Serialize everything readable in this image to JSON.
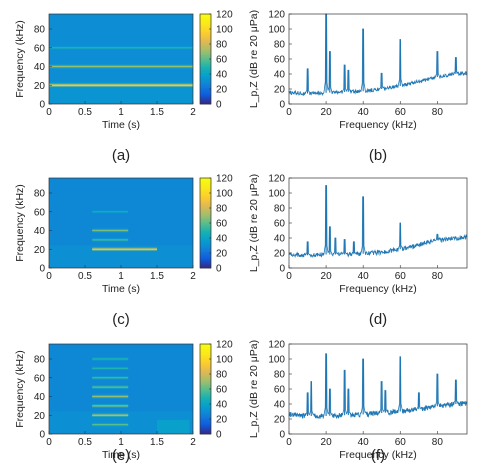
{
  "figure": {
    "captions": [
      "(a)",
      "(b)",
      "(c)",
      "(d)",
      "(e)",
      "(f)"
    ],
    "colorbar_ticks": [
      "0",
      "20",
      "40",
      "60",
      "80",
      "100",
      "120"
    ]
  },
  "chart_data": [
    {
      "type": "heatmap",
      "panel": "(a)",
      "xlabel": "Time (s)",
      "ylabel": "Frequency (kHz)",
      "xlim": [
        0,
        2
      ],
      "ylim": [
        0,
        96
      ],
      "xticks": [
        "0",
        "0.5",
        "1",
        "1.5",
        "2"
      ],
      "yticks": [
        "0",
        "20",
        "40",
        "60",
        "80"
      ],
      "colorbar": {
        "range": [
          0,
          120
        ],
        "ticks": [
          0,
          20,
          40,
          60,
          80,
          100,
          120
        ],
        "colormap": "parula"
      },
      "background_level": 30,
      "bands": [
        {
          "freq_khz": 20,
          "t_start": 0,
          "t_end": 2,
          "level": 95
        },
        {
          "freq_khz": 40,
          "t_start": 0,
          "t_end": 2,
          "level": 70
        },
        {
          "freq_khz": 60,
          "t_start": 0,
          "t_end": 2,
          "level": 50
        }
      ]
    },
    {
      "type": "line",
      "panel": "(b)",
      "xlabel": "Frequency (kHz)",
      "ylabel": "L_p,Z (dB re 20 μPa)",
      "xlim": [
        0,
        96
      ],
      "ylim": [
        0,
        120
      ],
      "xticks": [
        "0",
        "20",
        "40",
        "60",
        "80"
      ],
      "yticks": [
        "0",
        "20",
        "40",
        "60",
        "80",
        "100",
        "120"
      ],
      "baseline": [
        [
          0,
          15
        ],
        [
          10,
          14
        ],
        [
          20,
          15
        ],
        [
          30,
          16
        ],
        [
          40,
          17
        ],
        [
          50,
          20
        ],
        [
          60,
          24
        ],
        [
          70,
          30
        ],
        [
          80,
          36
        ],
        [
          90,
          40
        ],
        [
          96,
          41
        ]
      ],
      "peaks": [
        [
          10,
          47
        ],
        [
          20,
          120
        ],
        [
          22,
          70
        ],
        [
          30,
          52
        ],
        [
          32,
          45
        ],
        [
          40,
          100
        ],
        [
          50,
          41
        ],
        [
          60,
          86
        ],
        [
          80,
          70
        ],
        [
          90,
          62
        ]
      ],
      "noise_amplitude": 5
    },
    {
      "type": "heatmap",
      "panel": "(c)",
      "xlabel": "Time (s)",
      "ylabel": "Frequency (kHz)",
      "xlim": [
        0,
        2
      ],
      "ylim": [
        0,
        96
      ],
      "xticks": [
        "0",
        "0.5",
        "1",
        "1.5",
        "2"
      ],
      "yticks": [
        "0",
        "20",
        "40",
        "60",
        "80"
      ],
      "colorbar": {
        "range": [
          0,
          120
        ],
        "ticks": [
          0,
          20,
          40,
          60,
          80,
          100,
          120
        ],
        "colormap": "parula"
      },
      "background_level": 28,
      "bands": [
        {
          "freq_khz": 20,
          "t_start": 0.6,
          "t_end": 1.5,
          "level": 90
        },
        {
          "freq_khz": 30,
          "t_start": 0.6,
          "t_end": 1.1,
          "level": 55
        },
        {
          "freq_khz": 40,
          "t_start": 0.6,
          "t_end": 1.1,
          "level": 65
        },
        {
          "freq_khz": 60,
          "t_start": 0.6,
          "t_end": 1.1,
          "level": 45
        }
      ]
    },
    {
      "type": "line",
      "panel": "(d)",
      "xlabel": "Frequency (kHz)",
      "ylabel": "L_p,Z (dB re 20 μPa)",
      "xlim": [
        0,
        96
      ],
      "ylim": [
        0,
        120
      ],
      "xticks": [
        "0",
        "20",
        "40",
        "60",
        "80"
      ],
      "yticks": [
        "0",
        "20",
        "40",
        "60",
        "80",
        "100",
        "120"
      ],
      "baseline": [
        [
          0,
          18
        ],
        [
          10,
          17
        ],
        [
          20,
          18
        ],
        [
          30,
          18
        ],
        [
          40,
          19
        ],
        [
          50,
          21
        ],
        [
          60,
          25
        ],
        [
          70,
          31
        ],
        [
          80,
          37
        ],
        [
          90,
          40
        ],
        [
          96,
          41
        ]
      ],
      "peaks": [
        [
          10,
          35
        ],
        [
          20,
          110
        ],
        [
          22,
          55
        ],
        [
          25,
          40
        ],
        [
          30,
          38
        ],
        [
          35,
          35
        ],
        [
          40,
          95
        ],
        [
          60,
          60
        ],
        [
          80,
          45
        ]
      ],
      "noise_amplitude": 6
    },
    {
      "type": "heatmap",
      "panel": "(e)",
      "xlabel": "Time (s)",
      "ylabel": "Frequency (kHz)",
      "xlim": [
        0,
        2
      ],
      "ylim": [
        0,
        96
      ],
      "xticks": [
        "0",
        "0.5",
        "1",
        "1.5",
        "2"
      ],
      "yticks": [
        "0",
        "20",
        "40",
        "60",
        "80"
      ],
      "colorbar": {
        "range": [
          0,
          120
        ],
        "ticks": [
          0,
          20,
          40,
          60,
          80,
          100,
          120
        ],
        "colormap": "parula"
      },
      "background_level": 28,
      "bands": [
        {
          "freq_khz": 10,
          "t_start": 0.6,
          "t_end": 1.1,
          "level": 60
        },
        {
          "freq_khz": 20,
          "t_start": 0.6,
          "t_end": 1.1,
          "level": 75
        },
        {
          "freq_khz": 30,
          "t_start": 0.6,
          "t_end": 1.1,
          "level": 65
        },
        {
          "freq_khz": 40,
          "t_start": 0.6,
          "t_end": 1.1,
          "level": 70
        },
        {
          "freq_khz": 50,
          "t_start": 0.6,
          "t_end": 1.1,
          "level": 60
        },
        {
          "freq_khz": 60,
          "t_start": 0.6,
          "t_end": 1.1,
          "level": 55
        },
        {
          "freq_khz": 70,
          "t_start": 0.6,
          "t_end": 1.1,
          "level": 50
        },
        {
          "freq_khz": 80,
          "t_start": 0.6,
          "t_end": 1.1,
          "level": 50
        }
      ],
      "patches": [
        {
          "t_start": 1.5,
          "t_end": 1.95,
          "f_start": 0,
          "f_end": 15,
          "level": 38
        }
      ]
    },
    {
      "type": "line",
      "panel": "(f)",
      "xlabel": "Frequency (kHz)",
      "ylabel": "L_p,Z (dB re 20 μPa)",
      "xlim": [
        0,
        96
      ],
      "ylim": [
        0,
        120
      ],
      "xticks": [
        "0",
        "20",
        "40",
        "60",
        "80"
      ],
      "yticks": [
        "0",
        "20",
        "40",
        "60",
        "80",
        "100",
        "120"
      ],
      "baseline": [
        [
          0,
          26
        ],
        [
          10,
          24
        ],
        [
          20,
          24
        ],
        [
          30,
          25
        ],
        [
          40,
          26
        ],
        [
          50,
          28
        ],
        [
          60,
          30
        ],
        [
          70,
          33
        ],
        [
          80,
          37
        ],
        [
          90,
          40
        ],
        [
          96,
          41
        ]
      ],
      "peaks": [
        [
          10,
          55
        ],
        [
          12,
          70
        ],
        [
          20,
          107
        ],
        [
          22,
          60
        ],
        [
          30,
          85
        ],
        [
          32,
          60
        ],
        [
          40,
          100
        ],
        [
          50,
          70
        ],
        [
          52,
          58
        ],
        [
          60,
          103
        ],
        [
          70,
          55
        ],
        [
          80,
          80
        ],
        [
          90,
          72
        ]
      ],
      "noise_amplitude": 7
    }
  ]
}
